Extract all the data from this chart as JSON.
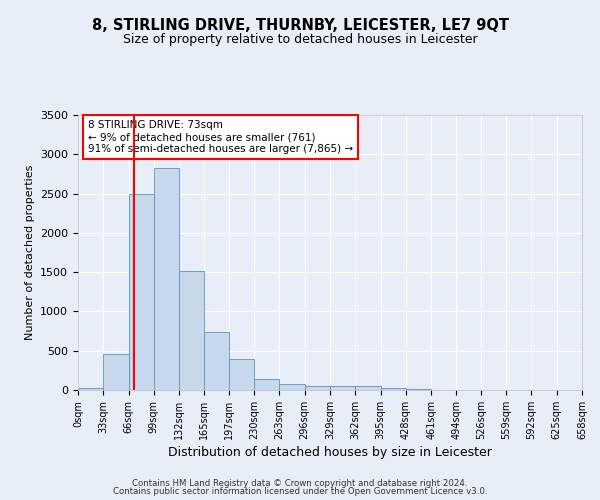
{
  "title": "8, STIRLING DRIVE, THURNBY, LEICESTER, LE7 9QT",
  "subtitle": "Size of property relative to detached houses in Leicester",
  "xlabel": "Distribution of detached houses by size in Leicester",
  "ylabel": "Number of detached properties",
  "bar_color": "#c8d9ee",
  "bar_edge_color": "#6090c0",
  "background_color": "#e8eef8",
  "grid_color": "#ffffff",
  "bin_edges": [
    0,
    33,
    66,
    99,
    132,
    165,
    197,
    230,
    263,
    296,
    329,
    362,
    395,
    428,
    461,
    494,
    526,
    559,
    592,
    625,
    658
  ],
  "bar_heights": [
    20,
    460,
    2500,
    2820,
    1510,
    740,
    390,
    140,
    75,
    55,
    50,
    50,
    28,
    18,
    0,
    0,
    0,
    0,
    0,
    0
  ],
  "tick_labels": [
    "0sqm",
    "33sqm",
    "66sqm",
    "99sqm",
    "132sqm",
    "165sqm",
    "197sqm",
    "230sqm",
    "263sqm",
    "296sqm",
    "329sqm",
    "362sqm",
    "395sqm",
    "428sqm",
    "461sqm",
    "494sqm",
    "526sqm",
    "559sqm",
    "592sqm",
    "625sqm",
    "658sqm"
  ],
  "ylim": [
    0,
    3500
  ],
  "yticks": [
    0,
    500,
    1000,
    1500,
    2000,
    2500,
    3000,
    3500
  ],
  "red_line_x": 73,
  "annotation_line1": "8 STIRLING DRIVE: 73sqm",
  "annotation_line2": "← 9% of detached houses are smaller (761)",
  "annotation_line3": "91% of semi-detached houses are larger (7,865) →",
  "footer_line1": "Contains HM Land Registry data © Crown copyright and database right 2024.",
  "footer_line2": "Contains public sector information licensed under the Open Government Licence v3.0."
}
